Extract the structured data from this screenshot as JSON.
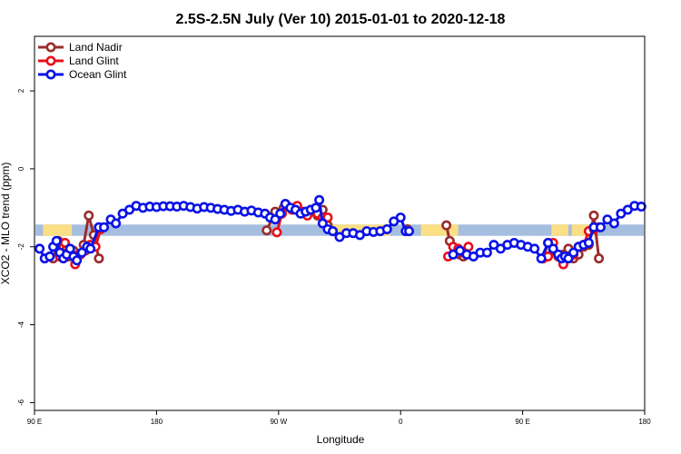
{
  "chart_data": {
    "type": "line",
    "title": "2.5S-2.5N July (Ver 10)   2015-01-01 to 2020-12-18",
    "xlabel": "Longitude",
    "ylabel": "XCO2 - MLO trend (ppm)",
    "xlim": [
      90,
      450
    ],
    "ylim": [
      -6.2,
      3.4
    ],
    "x_ticks": [
      {
        "value": 90,
        "label": "90 E"
      },
      {
        "value": 162,
        "label": "180"
      },
      {
        "value": 234,
        "label": "90 W"
      },
      {
        "value": 306,
        "label": "0"
      },
      {
        "value": 378,
        "label": "90 E"
      },
      {
        "value": 450,
        "label": "180"
      }
    ],
    "y_ticks": [
      -6,
      -4,
      -2,
      0,
      2
    ],
    "grid": false,
    "legend_position": "top-left",
    "band": {
      "y_range": [
        -1.72,
        -1.43
      ],
      "colors": {
        "ocean": "#a5bddf",
        "land": "#fbdf84"
      },
      "land_segments": [
        [
          95,
          112
        ],
        [
          265,
          300
        ],
        [
          318,
          340
        ],
        [
          395,
          405
        ],
        [
          407,
          421
        ]
      ]
    },
    "series": [
      {
        "name": "Land Nadir",
        "color": "#9a2c2c",
        "x": [
          101,
          104,
          107,
          110,
          113,
          116,
          119,
          122,
          125,
          128,
          227,
          232,
          237,
          257,
          260,
          263,
          310,
          333,
          335,
          338,
          341,
          343,
          345,
          390,
          393,
          396,
          399,
          402,
          405,
          408,
          411,
          414,
          417,
          420,
          423
        ],
        "y": [
          -2.3,
          -1.85,
          -2.0,
          -2.25,
          -2.1,
          -2.2,
          -1.95,
          -1.2,
          -1.7,
          -2.3,
          -1.58,
          -1.1,
          -1.0,
          -1.2,
          -1.05,
          -1.45,
          -1.55,
          -1.45,
          -1.85,
          -2.05,
          -2.2,
          -2.25,
          -2.2,
          -2.3,
          -1.9,
          -2.1,
          -2.25,
          -2.2,
          -2.05,
          -2.3,
          -2.2,
          -2.0,
          -1.95,
          -1.2,
          -2.3
        ],
        "line_segments": [
          [
            0,
            9
          ],
          [
            10,
            15
          ],
          [
            16,
            16
          ],
          [
            17,
            22
          ],
          [
            23,
            34
          ]
        ]
      },
      {
        "name": "Land Glint",
        "color": "#e8101a",
        "x": [
          105,
          108,
          111,
          114,
          117,
          120,
          123,
          126,
          129,
          233,
          236,
          239,
          242,
          245,
          248,
          251,
          254,
          257,
          260,
          263,
          334,
          337,
          340,
          343,
          346,
          390,
          393,
          396,
          399,
          402,
          405,
          408,
          411,
          414,
          417,
          420,
          423
        ],
        "y": [
          -2.25,
          -1.9,
          -2.15,
          -2.45,
          -2.2,
          -2.1,
          -1.95,
          -2.0,
          -1.55,
          -1.63,
          -1.15,
          -0.95,
          -1.05,
          -0.95,
          -1.1,
          -1.2,
          -1.05,
          -1.15,
          -1.25,
          -1.25,
          -2.25,
          -2.0,
          -2.05,
          -2.15,
          -2.0,
          -2.3,
          -2.25,
          -1.9,
          -2.2,
          -2.45,
          -2.3,
          -2.2,
          -2.0,
          -1.95,
          -1.6,
          -1.55,
          -1.5
        ],
        "line_segments": [
          [
            0,
            8
          ],
          [
            9,
            19
          ],
          [
            20,
            24
          ],
          [
            25,
            36
          ]
        ]
      },
      {
        "name": "Ocean Glint",
        "color": "#0a13e6",
        "x": [
          93,
          96,
          99,
          101,
          103,
          105,
          107,
          109,
          111,
          113,
          115,
          118,
          121,
          123,
          128,
          131,
          135,
          138,
          142,
          146,
          150,
          154,
          158,
          162,
          166,
          170,
          174,
          178,
          182,
          186,
          190,
          194,
          198,
          202,
          206,
          210,
          214,
          218,
          222,
          226,
          229,
          232,
          235,
          238,
          241,
          244,
          247,
          250,
          253,
          256,
          258,
          260,
          263,
          266,
          270,
          274,
          278,
          282,
          286,
          290,
          294,
          298,
          302,
          306,
          309,
          311,
          337,
          341,
          345,
          349,
          353,
          357,
          361,
          365,
          369,
          373,
          377,
          381,
          385,
          389,
          393,
          396,
          399,
          401,
          403,
          405,
          408,
          411,
          414,
          417,
          420,
          424,
          428,
          432,
          436,
          440,
          444,
          448
        ],
        "y": [
          -2.05,
          -2.3,
          -2.25,
          -2.0,
          -1.85,
          -2.15,
          -2.3,
          -2.2,
          -2.05,
          -2.25,
          -2.35,
          -2.15,
          -2.0,
          -2.05,
          -1.5,
          -1.5,
          -1.3,
          -1.4,
          -1.15,
          -1.05,
          -0.95,
          -1.0,
          -0.97,
          -0.98,
          -0.96,
          -0.96,
          -0.97,
          -0.95,
          -0.98,
          -1.02,
          -0.98,
          -1.0,
          -1.03,
          -1.05,
          -1.08,
          -1.05,
          -1.1,
          -1.07,
          -1.12,
          -1.15,
          -1.25,
          -1.3,
          -1.15,
          -0.9,
          -1.0,
          -1.05,
          -1.15,
          -1.1,
          -1.05,
          -1.0,
          -0.8,
          -1.4,
          -1.55,
          -1.6,
          -1.75,
          -1.65,
          -1.65,
          -1.7,
          -1.6,
          -1.62,
          -1.6,
          -1.55,
          -1.35,
          -1.25,
          -1.6,
          -1.6,
          -2.2,
          -2.1,
          -2.2,
          -2.25,
          -2.15,
          -2.15,
          -1.95,
          -2.05,
          -1.95,
          -1.9,
          -1.95,
          -2.0,
          -2.05,
          -2.3,
          -1.9,
          -2.05,
          -2.2,
          -2.3,
          -2.25,
          -2.3,
          -2.15,
          -2.0,
          -1.95,
          -1.9,
          -1.5,
          -1.5,
          -1.3,
          -1.4,
          -1.15,
          -1.05,
          -0.95,
          -0.97
        ],
        "line_segments": [
          [
            0,
            65
          ],
          [
            66,
            97
          ]
        ]
      }
    ]
  }
}
